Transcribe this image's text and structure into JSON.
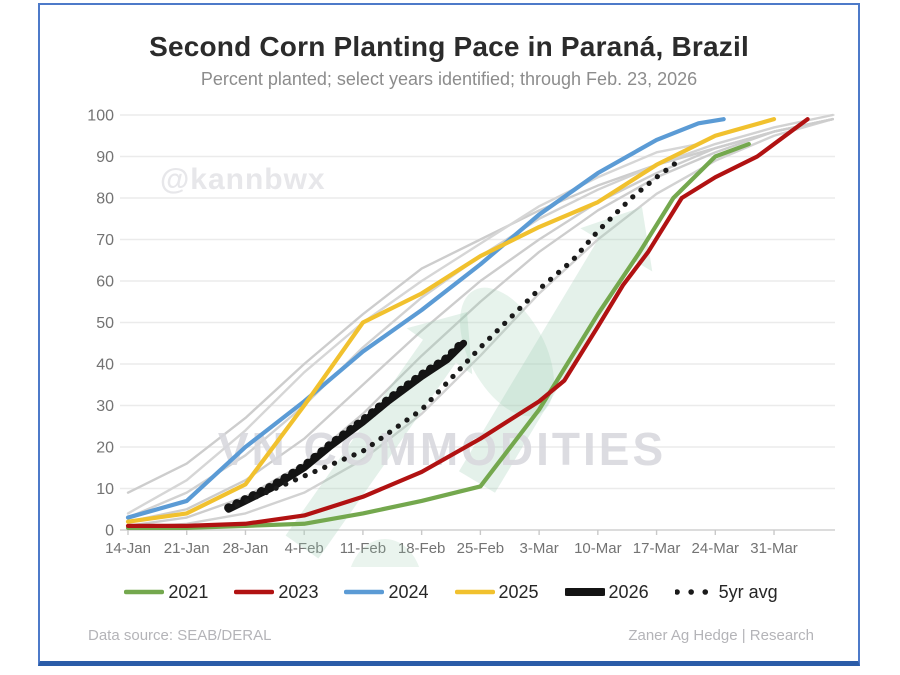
{
  "header": {
    "title": "Second Corn Planting Pace in Paraná, Brazil",
    "subtitle": "Percent planted; select years identified; through Feb. 23, 2026"
  },
  "watermarks": {
    "handle": "@kannbwx",
    "brand": "VN COMMODITIES"
  },
  "footer": {
    "source": "Data source: SEAB/DERAL",
    "credit": "Zaner Ag Hedge | Research"
  },
  "colors": {
    "green_2021": "#74a84e",
    "red_2023": "#b11212",
    "blue_2024": "#5b9bd5",
    "yellow_2025": "#f1c12e",
    "black_2026": "#141414",
    "dotted_avg": "#1a1a1a",
    "gray_years": "#cdcdcd",
    "grid": "#ebebeb",
    "axis_text": "#737373",
    "frame_border": "#4d7ac9",
    "frame_bottom": "#2b5ca8",
    "mint_watermark": "#9fceb2"
  },
  "chart_data": {
    "type": "line",
    "title": "Second Corn Planting Pace in Paraná, Brazil",
    "subtitle": "Percent planted; select years identified; through Feb. 23, 2026",
    "xlabel": "",
    "ylabel": "Percent planted",
    "ylim": [
      0,
      100
    ],
    "y_ticks": [
      0,
      10,
      20,
      30,
      40,
      50,
      60,
      70,
      80,
      90,
      100
    ],
    "x_axis": {
      "tick_days": [
        0,
        7,
        14,
        21,
        28,
        35,
        42,
        49,
        56,
        63,
        70,
        77
      ],
      "tick_labels": [
        "14-Jan",
        "21-Jan",
        "28-Jan",
        "4-Feb",
        "11-Feb",
        "18-Feb",
        "25-Feb",
        "3-Mar",
        "10-Mar",
        "17-Mar",
        "24-Mar",
        "31-Mar"
      ]
    },
    "grid": "horizontal",
    "legend_position": "bottom",
    "series": [
      {
        "name": "unlabeled-year-1",
        "role": "background",
        "color": "#cdcdcd",
        "width": 2.4,
        "dash": "solid",
        "points": [
          [
            0,
            9
          ],
          [
            7,
            16
          ],
          [
            14,
            27
          ],
          [
            21,
            40
          ],
          [
            28,
            52
          ],
          [
            35,
            63
          ],
          [
            42,
            70
          ],
          [
            49,
            77
          ],
          [
            56,
            83
          ],
          [
            63,
            88
          ],
          [
            70,
            92
          ],
          [
            77,
            96
          ],
          [
            84,
            99
          ]
        ]
      },
      {
        "name": "unlabeled-year-2",
        "role": "background",
        "color": "#d2d2d2",
        "width": 2.4,
        "dash": "solid",
        "points": [
          [
            0,
            3
          ],
          [
            7,
            9
          ],
          [
            14,
            18
          ],
          [
            21,
            30
          ],
          [
            28,
            44
          ],
          [
            35,
            56
          ],
          [
            42,
            66
          ],
          [
            49,
            75
          ],
          [
            56,
            82
          ],
          [
            63,
            88
          ],
          [
            70,
            93
          ],
          [
            77,
            97
          ],
          [
            84,
            100
          ]
        ]
      },
      {
        "name": "unlabeled-year-3",
        "role": "background",
        "color": "#cdcdcd",
        "width": 2.4,
        "dash": "solid",
        "points": [
          [
            0,
            1
          ],
          [
            7,
            3
          ],
          [
            14,
            8
          ],
          [
            21,
            16
          ],
          [
            28,
            28
          ],
          [
            35,
            42
          ],
          [
            42,
            55
          ],
          [
            49,
            67
          ],
          [
            56,
            77
          ],
          [
            63,
            85
          ],
          [
            70,
            91
          ],
          [
            77,
            96
          ],
          [
            84,
            99
          ]
        ]
      },
      {
        "name": "unlabeled-year-4",
        "role": "background",
        "color": "#d2d2d2",
        "width": 2.4,
        "dash": "solid",
        "points": [
          [
            0,
            0.5
          ],
          [
            7,
            1.5
          ],
          [
            14,
            4
          ],
          [
            21,
            9
          ],
          [
            28,
            17
          ],
          [
            35,
            28
          ],
          [
            42,
            42
          ],
          [
            49,
            57
          ],
          [
            56,
            70
          ],
          [
            63,
            81
          ],
          [
            70,
            89
          ],
          [
            77,
            95
          ],
          [
            84,
            99
          ]
        ]
      },
      {
        "name": "unlabeled-year-5",
        "role": "background",
        "color": "#cdcdcd",
        "width": 2.4,
        "dash": "solid",
        "points": [
          [
            0,
            2
          ],
          [
            7,
            5
          ],
          [
            14,
            12
          ],
          [
            21,
            22
          ],
          [
            28,
            35
          ],
          [
            35,
            48
          ],
          [
            42,
            60
          ],
          [
            49,
            70
          ],
          [
            56,
            79
          ],
          [
            63,
            86
          ],
          [
            70,
            92
          ],
          [
            77,
            96
          ],
          [
            84,
            99
          ]
        ]
      },
      {
        "name": "unlabeled-year-6",
        "role": "background",
        "color": "#d6d6d6",
        "width": 2.4,
        "dash": "solid",
        "points": [
          [
            0,
            4
          ],
          [
            7,
            12
          ],
          [
            14,
            24
          ],
          [
            21,
            38
          ],
          [
            28,
            50
          ],
          [
            35,
            60
          ],
          [
            42,
            69
          ],
          [
            49,
            78
          ],
          [
            56,
            85
          ],
          [
            63,
            91
          ],
          [
            68,
            93
          ]
        ]
      },
      {
        "name": "2021",
        "role": "main",
        "color": "#74a84e",
        "width": 4.2,
        "dash": "solid",
        "points": [
          [
            0,
            0.5
          ],
          [
            7,
            0.5
          ],
          [
            14,
            1
          ],
          [
            21,
            1.5
          ],
          [
            28,
            4
          ],
          [
            35,
            7
          ],
          [
            42,
            10.5
          ],
          [
            49,
            29
          ],
          [
            56,
            52
          ],
          [
            61,
            67
          ],
          [
            65,
            80
          ],
          [
            70,
            90
          ],
          [
            74,
            93
          ]
        ]
      },
      {
        "name": "2023",
        "role": "main",
        "color": "#b11212",
        "width": 4.2,
        "dash": "solid",
        "points": [
          [
            0,
            1
          ],
          [
            7,
            1
          ],
          [
            14,
            1.5
          ],
          [
            21,
            3.5
          ],
          [
            28,
            8
          ],
          [
            35,
            14
          ],
          [
            42,
            22
          ],
          [
            49,
            31
          ],
          [
            52,
            36
          ],
          [
            56,
            49
          ],
          [
            59,
            59
          ],
          [
            62,
            67
          ],
          [
            66,
            80
          ],
          [
            70,
            85
          ],
          [
            75,
            90
          ],
          [
            77,
            93
          ],
          [
            81,
            99
          ]
        ]
      },
      {
        "name": "2024",
        "role": "main",
        "color": "#5b9bd5",
        "width": 4.2,
        "dash": "solid",
        "points": [
          [
            0,
            3
          ],
          [
            7,
            7
          ],
          [
            14,
            20
          ],
          [
            21,
            31
          ],
          [
            28,
            43
          ],
          [
            35,
            53
          ],
          [
            42,
            64
          ],
          [
            49,
            76
          ],
          [
            56,
            86
          ],
          [
            63,
            94
          ],
          [
            68,
            98
          ],
          [
            71,
            99
          ]
        ]
      },
      {
        "name": "2025",
        "role": "main",
        "color": "#f1c12e",
        "width": 4.2,
        "dash": "solid",
        "points": [
          [
            0,
            2
          ],
          [
            7,
            4
          ],
          [
            14,
            11
          ],
          [
            21,
            30
          ],
          [
            28,
            50
          ],
          [
            35,
            57
          ],
          [
            42,
            66
          ],
          [
            49,
            73
          ],
          [
            56,
            79
          ],
          [
            63,
            88
          ],
          [
            70,
            95
          ],
          [
            77,
            99
          ]
        ]
      },
      {
        "name": "2026",
        "role": "main",
        "color": "#141414",
        "width": 7,
        "dash": "solid",
        "points": [
          [
            12,
            5
          ],
          [
            14,
            7
          ],
          [
            17,
            10
          ],
          [
            21,
            15
          ],
          [
            24,
            20
          ],
          [
            28,
            26
          ],
          [
            31,
            31
          ],
          [
            35,
            37
          ],
          [
            38,
            41
          ],
          [
            40,
            45
          ]
        ]
      },
      {
        "name": "5yr avg",
        "role": "main",
        "color": "#1a1a1a",
        "width": 5.2,
        "dash": "dotted",
        "points": [
          [
            13,
            6
          ],
          [
            21,
            13
          ],
          [
            28,
            19
          ],
          [
            35,
            29
          ],
          [
            42,
            44
          ],
          [
            49,
            58
          ],
          [
            53,
            65
          ],
          [
            56,
            72
          ],
          [
            60,
            80
          ],
          [
            63,
            85
          ],
          [
            66,
            89.5
          ]
        ]
      }
    ],
    "legend": [
      {
        "label": "2021",
        "swatch": "line",
        "color": "#74a84e"
      },
      {
        "label": "2023",
        "swatch": "line",
        "color": "#b11212"
      },
      {
        "label": "2024",
        "swatch": "line",
        "color": "#5b9bd5"
      },
      {
        "label": "2025",
        "swatch": "line",
        "color": "#f1c12e"
      },
      {
        "label": "2026",
        "swatch": "thick-line",
        "color": "#141414"
      },
      {
        "label": "5yr avg",
        "swatch": "dots",
        "color": "#1a1a1a"
      }
    ]
  }
}
